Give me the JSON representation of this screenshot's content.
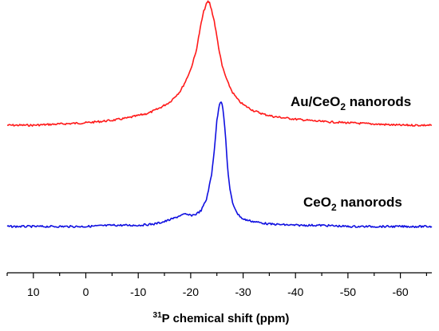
{
  "chart_data": {
    "type": "line",
    "title": "",
    "xlabel_sup": "31",
    "xlabel": "P chemical shift (ppm)",
    "ylabel": "",
    "xlim": [
      15,
      -66
    ],
    "x_reversed": true,
    "y_axis_shown": false,
    "grid": false,
    "x_ticks": [
      10,
      0,
      -10,
      -20,
      -30,
      -40,
      -50,
      -60
    ],
    "x_tick_labels": [
      "10",
      "0",
      "-10",
      "-20",
      "-30",
      "-40",
      "-50",
      "-60"
    ],
    "series": [
      {
        "label_main": "Au/CeO",
        "label_sub": "2",
        "label_tail": " nanorods",
        "color": "#ff1a1a",
        "offset": 1.0,
        "x": [
          15,
          10,
          5,
          0,
          -5,
          -8,
          -10,
          -12,
          -14,
          -16,
          -18,
          -19,
          -20,
          -21,
          -21.5,
          -22,
          -22.5,
          -23,
          -23.3,
          -23.6,
          -24,
          -24.5,
          -25,
          -25.5,
          -26,
          -27,
          -28,
          -29,
          -30,
          -32,
          -34,
          -36,
          -38,
          -40,
          -45,
          -50,
          -55,
          -60,
          -66
        ],
        "y": [
          0.0,
          0.0,
          0.01,
          0.02,
          0.04,
          0.06,
          0.08,
          0.1,
          0.14,
          0.19,
          0.28,
          0.36,
          0.46,
          0.6,
          0.72,
          0.84,
          0.94,
          1.0,
          1.02,
          1.01,
          0.95,
          0.86,
          0.73,
          0.6,
          0.49,
          0.36,
          0.27,
          0.21,
          0.17,
          0.12,
          0.09,
          0.07,
          0.06,
          0.05,
          0.03,
          0.02,
          0.01,
          0.0,
          0.0
        ]
      },
      {
        "label_main": "CeO",
        "label_sub": "2",
        "label_tail": " nanorods",
        "color": "#1010e0",
        "offset": 0.0,
        "x": [
          15,
          10,
          5,
          0,
          -5,
          -10,
          -13,
          -15,
          -17,
          -18,
          -19,
          -20,
          -21,
          -22,
          -23,
          -24,
          -24.5,
          -25,
          -25.5,
          -25.8,
          -26,
          -26.3,
          -26.7,
          -27,
          -27.5,
          -28,
          -29,
          -30,
          -32,
          -35,
          -40,
          -45,
          -50,
          -55,
          -60,
          -66
        ],
        "y": [
          0.0,
          0.0,
          0.0,
          0.0,
          0.01,
          0.01,
          0.02,
          0.04,
          0.07,
          0.09,
          0.1,
          0.09,
          0.1,
          0.13,
          0.22,
          0.42,
          0.62,
          0.86,
          1.0,
          1.02,
          1.0,
          0.9,
          0.7,
          0.5,
          0.3,
          0.19,
          0.1,
          0.06,
          0.04,
          0.02,
          0.01,
          0.01,
          0.0,
          0.0,
          0.0,
          0.0
        ]
      }
    ]
  }
}
